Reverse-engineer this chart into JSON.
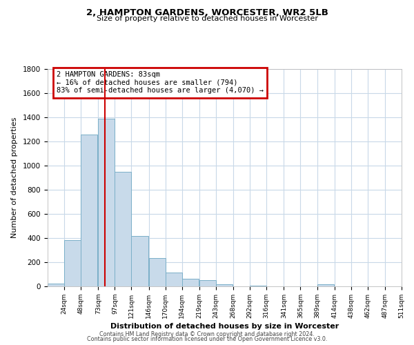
{
  "title": "2, HAMPTON GARDENS, WORCESTER, WR2 5LB",
  "subtitle": "Size of property relative to detached houses in Worcester",
  "xlabel": "Distribution of detached houses by size in Worcester",
  "ylabel": "Number of detached properties",
  "bar_color": "#c8daea",
  "bar_edge_color": "#7aafc8",
  "background_color": "#ffffff",
  "grid_color": "#c8d8e8",
  "vline_color": "#cc0000",
  "vline_x": 83,
  "annotation_line1": "2 HAMPTON GARDENS: 83sqm",
  "annotation_line2": "← 16% of detached houses are smaller (794)",
  "annotation_line3": "83% of semi-detached houses are larger (4,070) →",
  "annotation_box_color": "#cc0000",
  "footer_line1": "Contains HM Land Registry data © Crown copyright and database right 2024.",
  "footer_line2": "Contains public sector information licensed under the Open Government Licence v3.0.",
  "bins_left": [
    0,
    24,
    48,
    73,
    97,
    121,
    146,
    170,
    194,
    219,
    243,
    268,
    292,
    316,
    341,
    365,
    389,
    414,
    438,
    462,
    487
  ],
  "bin_width": 24,
  "counts": [
    25,
    385,
    1260,
    1390,
    950,
    415,
    235,
    115,
    65,
    50,
    15,
    0,
    5,
    0,
    0,
    0,
    15,
    0,
    0,
    0,
    0
  ],
  "xlim_left": 0,
  "xlim_right": 511,
  "ylim_top": 1800,
  "tick_labels": [
    "24sqm",
    "48sqm",
    "73sqm",
    "97sqm",
    "121sqm",
    "146sqm",
    "170sqm",
    "194sqm",
    "219sqm",
    "243sqm",
    "268sqm",
    "292sqm",
    "316sqm",
    "341sqm",
    "365sqm",
    "389sqm",
    "414sqm",
    "438sqm",
    "462sqm",
    "487sqm",
    "511sqm"
  ],
  "tick_positions": [
    24,
    48,
    73,
    97,
    121,
    146,
    170,
    194,
    219,
    243,
    268,
    292,
    316,
    341,
    365,
    389,
    414,
    438,
    462,
    487,
    511
  ],
  "yticks": [
    0,
    200,
    400,
    600,
    800,
    1000,
    1200,
    1400,
    1600,
    1800
  ]
}
